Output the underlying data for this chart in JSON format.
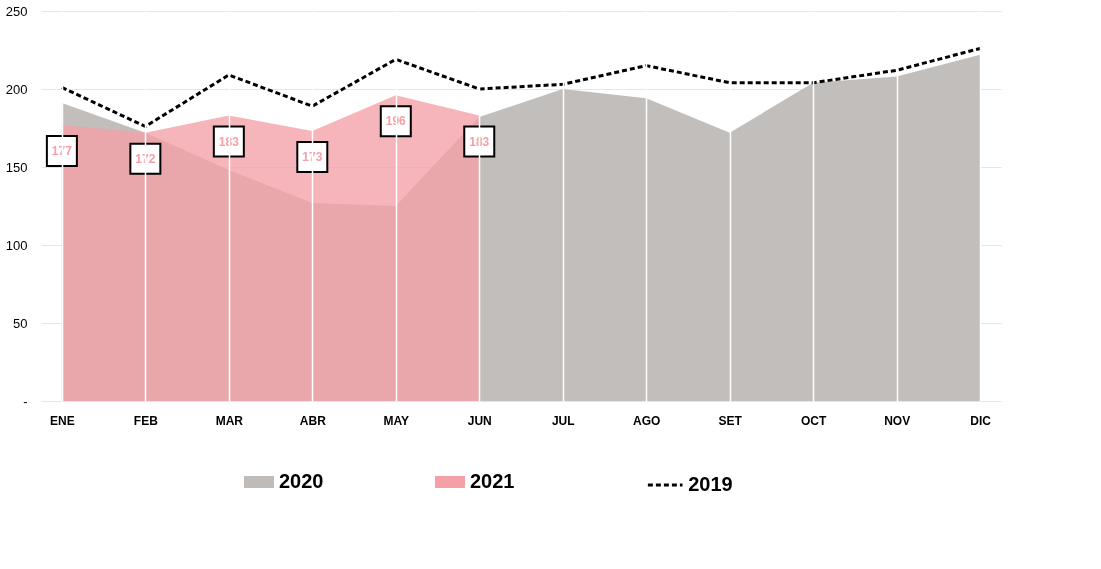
{
  "chart_data": {
    "type": "area",
    "categories": [
      "ENE",
      "FEB",
      "MAR",
      "ABR",
      "MAY",
      "JUN",
      "JUL",
      "AGO",
      "SET",
      "OCT",
      "NOV",
      "DIC"
    ],
    "series": [
      {
        "name": "2020",
        "color": "#bfbbb8",
        "values": [
          191,
          172,
          148,
          127,
          125,
          182,
          200,
          194,
          172,
          204,
          208,
          222
        ]
      },
      {
        "name": "2021",
        "color": "#f4a0a6",
        "data_labels": true,
        "values": [
          177,
          172,
          183,
          173,
          196,
          183,
          null,
          null,
          null,
          null,
          null,
          null
        ]
      },
      {
        "name": "2019",
        "type": "line",
        "color": "#000000",
        "line_style": "dashed",
        "values": [
          201,
          176,
          209,
          189,
          219,
          200,
          203,
          215,
          204,
          204,
          212,
          226
        ]
      }
    ],
    "ylim": [
      0,
      250
    ],
    "yticks": [
      {
        "value": 0,
        "label": "-"
      },
      50,
      100,
      150,
      200,
      250
    ],
    "grid": true,
    "legend": "bottom"
  }
}
